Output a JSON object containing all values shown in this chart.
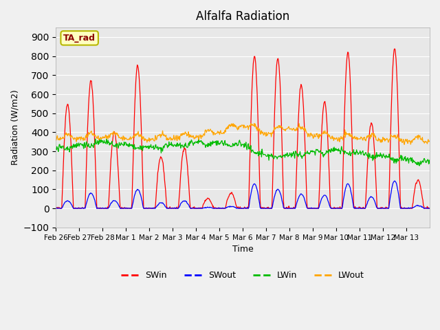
{
  "title": "Alfalfa Radiation",
  "xlabel": "Time",
  "ylabel": "Radiation (W/m2)",
  "ylim": [
    -100,
    950
  ],
  "yticks": [
    -100,
    0,
    100,
    200,
    300,
    400,
    500,
    600,
    700,
    800,
    900
  ],
  "annotation_text": "TA_rad",
  "annotation_color": "#8B0000",
  "annotation_bg": "#FFFFC0",
  "annotation_edge": "#B8B800",
  "fig_bg": "#F0F0F0",
  "plot_bg": "#E8E8E8",
  "grid_color": "#FFFFFF",
  "line_colors": [
    "#FF0000",
    "#0000FF",
    "#00BB00",
    "#FFA500"
  ],
  "legend_labels": [
    "SWin",
    "SWout",
    "LWin",
    "LWout"
  ],
  "xticklabels": [
    "Feb 26",
    "Feb 27",
    "Feb 28",
    "Mar 1",
    "Mar 2",
    "Mar 3",
    "Mar 4",
    "Mar 5",
    "Mar 6",
    "Mar 7",
    "Mar 8",
    "Mar 9",
    "Mar 10",
    "Mar 11",
    "Mar 12",
    "Mar 13"
  ],
  "n_days": 16,
  "sw_peaks": [
    550,
    670,
    400,
    750,
    270,
    320,
    50,
    80,
    800,
    790,
    650,
    560,
    820,
    450,
    840,
    150
  ],
  "swout_peaks": [
    40,
    80,
    40,
    100,
    30,
    40,
    5,
    10,
    130,
    100,
    75,
    70,
    130,
    60,
    145,
    15
  ],
  "lwin_nodes_x": [
    0,
    2,
    4,
    6,
    8,
    9,
    10,
    12,
    14,
    16
  ],
  "lwin_nodes_y": [
    320,
    350,
    320,
    350,
    340,
    275,
    285,
    310,
    275,
    245
  ],
  "lwout_nodes_x": [
    0,
    2,
    4,
    6,
    7,
    8,
    9,
    10,
    11,
    12,
    14,
    16
  ],
  "lwout_nodes_y": [
    360,
    375,
    360,
    375,
    395,
    435,
    385,
    425,
    380,
    370,
    360,
    350
  ]
}
